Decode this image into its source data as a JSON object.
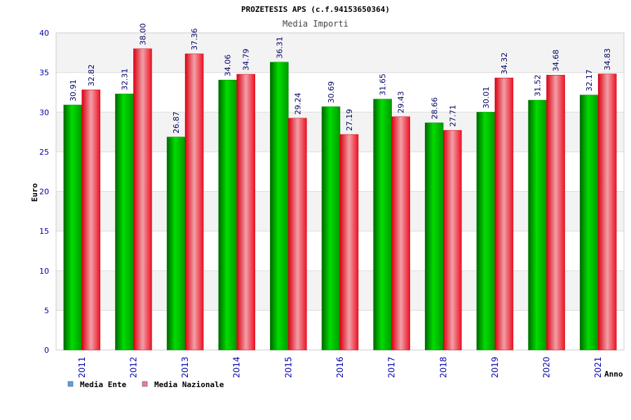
{
  "chart_data": {
    "type": "bar",
    "title": "PROZETESIS APS (c.f.94153650364)",
    "subtitle": "Media Importi",
    "xlabel": "Anno",
    "ylabel": "Euro",
    "ylim": [
      0,
      40
    ],
    "yticks": [
      0,
      5,
      10,
      15,
      20,
      25,
      30,
      35,
      40
    ],
    "categories": [
      "2011",
      "2012",
      "2013",
      "2014",
      "2015",
      "2016",
      "2017",
      "2018",
      "2019",
      "2020",
      "2021"
    ],
    "series": [
      {
        "name": "Media Ente",
        "color": "#00aa00",
        "values": [
          30.91,
          32.31,
          26.87,
          34.06,
          36.31,
          30.69,
          31.65,
          28.66,
          30.01,
          31.52,
          32.17
        ],
        "labels": [
          "30.91",
          "32.31",
          "26.87",
          "34.06",
          "36.31",
          "30.69",
          "31.65",
          "28.66",
          "30.01",
          "31.52",
          "32.17"
        ]
      },
      {
        "name": "Media Nazionale",
        "color": "#ee1122",
        "values": [
          32.82,
          38.0,
          37.36,
          34.79,
          29.24,
          27.19,
          29.43,
          27.71,
          34.32,
          34.68,
          34.83
        ],
        "labels": [
          "32.82",
          "38.00",
          "37.36",
          "34.79",
          "29.24",
          "27.19",
          "29.43",
          "27.71",
          "34.32",
          "34.68",
          "34.83"
        ]
      }
    ],
    "legend": {
      "placement": "bottom-left",
      "items": [
        {
          "label": "Media Ente",
          "color": "#5aa0e6"
        },
        {
          "label": "Media Nazionale",
          "color": "#e87ab0"
        }
      ]
    },
    "grid": true,
    "colors": {
      "band_light": "#f3f3f3",
      "band_white": "#ffffff",
      "axis_tick_text": "#0000aa",
      "title_text": "#000000",
      "subtitle_text": "#444444",
      "value_label_text": "#000066"
    }
  }
}
